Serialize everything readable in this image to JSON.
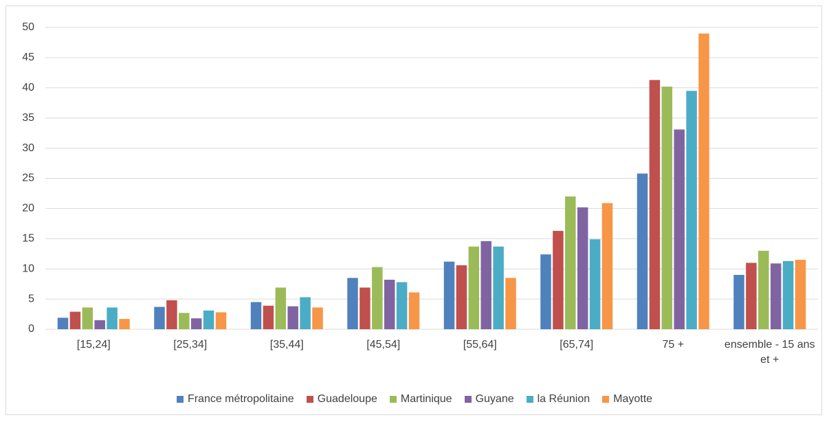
{
  "chart_data": {
    "type": "bar",
    "categories": [
      "[15,24]",
      "[25,34]",
      "[35,44]",
      "[45,54]",
      "[55,64]",
      "[65,74]",
      "75 +",
      "ensemble - 15 ans et +"
    ],
    "series": [
      {
        "name": "France métropolitaine",
        "color": "#4f81bd",
        "values": [
          1.9,
          3.7,
          4.5,
          8.5,
          11.2,
          12.4,
          25.8,
          9.0
        ]
      },
      {
        "name": "Guadeloupe",
        "color": "#c0504d",
        "values": [
          2.9,
          4.8,
          3.9,
          6.9,
          10.6,
          16.3,
          41.3,
          11.0
        ]
      },
      {
        "name": "Martinique",
        "color": "#9bbb59",
        "values": [
          3.6,
          2.7,
          6.9,
          10.3,
          13.7,
          22.0,
          40.2,
          13.0
        ]
      },
      {
        "name": "Guyane",
        "color": "#8064a2",
        "values": [
          1.5,
          1.8,
          3.8,
          8.2,
          14.6,
          20.2,
          33.1,
          10.9
        ]
      },
      {
        "name": "la Réunion",
        "color": "#4bacc6",
        "values": [
          3.6,
          3.1,
          5.3,
          7.8,
          13.7,
          14.9,
          39.5,
          11.3
        ]
      },
      {
        "name": "Mayotte",
        "color": "#f79646",
        "values": [
          1.7,
          2.8,
          3.6,
          6.1,
          8.5,
          20.9,
          49.0,
          11.5
        ]
      }
    ],
    "ylim": [
      0,
      50
    ],
    "yticks": [
      0,
      5,
      10,
      15,
      20,
      25,
      30,
      35,
      40,
      45,
      50
    ],
    "grid": true,
    "legend": "bottom"
  }
}
